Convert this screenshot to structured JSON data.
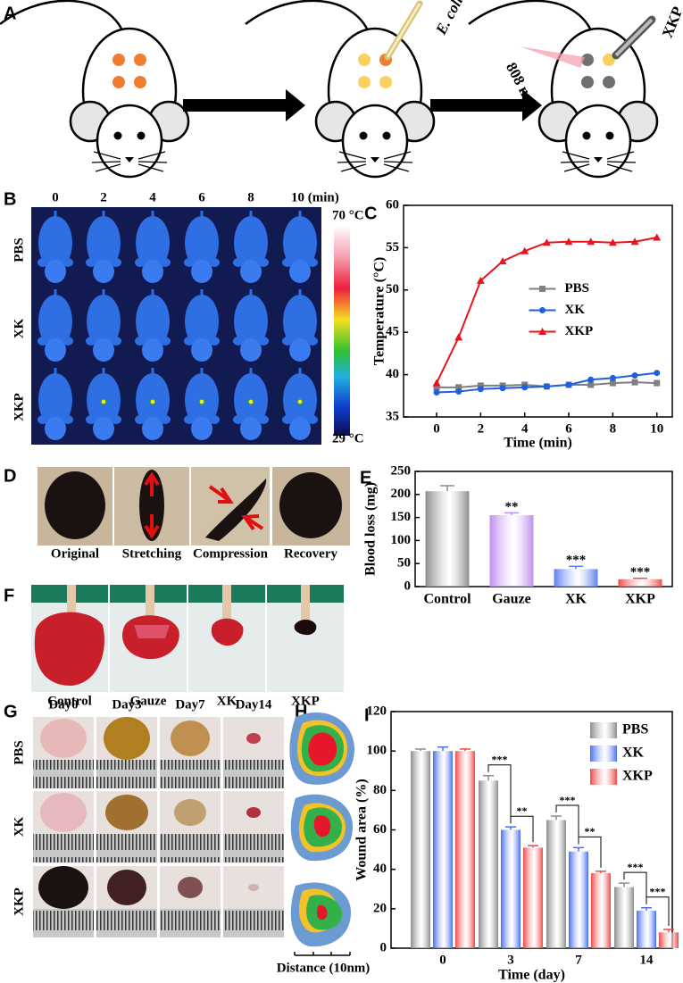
{
  "panel_a": {
    "label": "A",
    "bacteria": "E. coli",
    "laser": "808 nm",
    "material": "XKP"
  },
  "panel_b": {
    "label": "B",
    "times": [
      "0",
      "2",
      "4",
      "6",
      "8",
      "10 (min)"
    ],
    "groups": [
      "PBS",
      "XK",
      "XKP"
    ],
    "scale_max": "70 °C",
    "scale_min": "29 °C"
  },
  "panel_d": {
    "label": "D",
    "states": [
      "Original",
      "Stretching",
      "Compression",
      "Recovery"
    ]
  },
  "panel_f": {
    "label": "F",
    "groups": [
      "Control",
      "Gauze",
      "XK",
      "XKP"
    ]
  },
  "panel_g": {
    "label": "G",
    "days": [
      "Day0",
      "Day3",
      "Day7",
      "Day14"
    ],
    "groups": [
      "PBS",
      "XK",
      "XKP"
    ]
  },
  "panel_h": {
    "label": "H",
    "axis_label": "Distance (10nm)"
  },
  "chart_data": [
    {
      "type": "line",
      "panel_label": "C",
      "x_label": "Time (min)",
      "y_label": "Temperature (°C)",
      "x": [
        0,
        1,
        2,
        3,
        4,
        5,
        6,
        7,
        8,
        9,
        10
      ],
      "series": [
        {
          "name": "PBS",
          "color": "#7f7f7f",
          "marker": "square",
          "values": [
            38.5,
            38.5,
            38.7,
            38.7,
            38.8,
            38.6,
            38.8,
            38.8,
            39.0,
            39.1,
            39.0
          ]
        },
        {
          "name": "XK",
          "color": "#1f5fe0",
          "marker": "circle",
          "values": [
            37.9,
            38.0,
            38.3,
            38.4,
            38.5,
            38.6,
            38.8,
            39.4,
            39.6,
            39.9,
            40.2
          ]
        },
        {
          "name": "XKP",
          "color": "#e8141e",
          "marker": "triangle",
          "values": [
            39.0,
            44.4,
            51.1,
            53.4,
            54.6,
            55.6,
            55.7,
            55.7,
            55.6,
            55.7,
            56.2
          ]
        }
      ],
      "xlim": [
        -1.5,
        10.7
      ],
      "xticks": [
        0,
        2,
        4,
        6,
        8,
        10
      ],
      "ylim": [
        35,
        60
      ],
      "yticks": [
        35,
        40,
        45,
        50,
        55,
        60
      ],
      "legend": "center"
    },
    {
      "type": "bar",
      "panel_label": "E",
      "y_label": "Blood loss (mg)",
      "categories": [
        "Control",
        "Gauze",
        "XK",
        "XKP"
      ],
      "values": [
        207,
        155,
        38,
        16
      ],
      "errors": [
        12,
        5,
        6,
        2
      ],
      "colors": [
        "#8c8c8c",
        "#c08ef0",
        "#5b7ff0",
        "#f04c4c"
      ],
      "annotations": [
        null,
        "**",
        "***",
        "***"
      ],
      "ylim": [
        0,
        250
      ],
      "yticks": [
        0,
        50,
        100,
        150,
        200,
        250
      ]
    },
    {
      "type": "grouped_bar",
      "panel_label": "I",
      "x_label": "Time (day)",
      "y_label": "Wound area (%)",
      "categories": [
        "0",
        "3",
        "7",
        "14"
      ],
      "series": [
        {
          "name": "PBS",
          "color": "#8c8c8c",
          "values": [
            100,
            85,
            65,
            31
          ],
          "errors": [
            1,
            2.5,
            2,
            2
          ]
        },
        {
          "name": "XK",
          "color": "#4a6ff0",
          "values": [
            100,
            60,
            49,
            19
          ],
          "errors": [
            2,
            1.5,
            2,
            1.5
          ]
        },
        {
          "name": "XKP",
          "color": "#f04848",
          "values": [
            100,
            51,
            38,
            8
          ],
          "errors": [
            1,
            1,
            1,
            1.5
          ]
        }
      ],
      "significance": [
        null,
        [
          "***",
          "**"
        ],
        [
          "***",
          "**"
        ],
        [
          "***",
          "***"
        ]
      ],
      "ylim": [
        0,
        120
      ],
      "yticks": [
        0,
        20,
        40,
        60,
        80,
        100,
        120
      ],
      "legend": "upper right"
    }
  ]
}
